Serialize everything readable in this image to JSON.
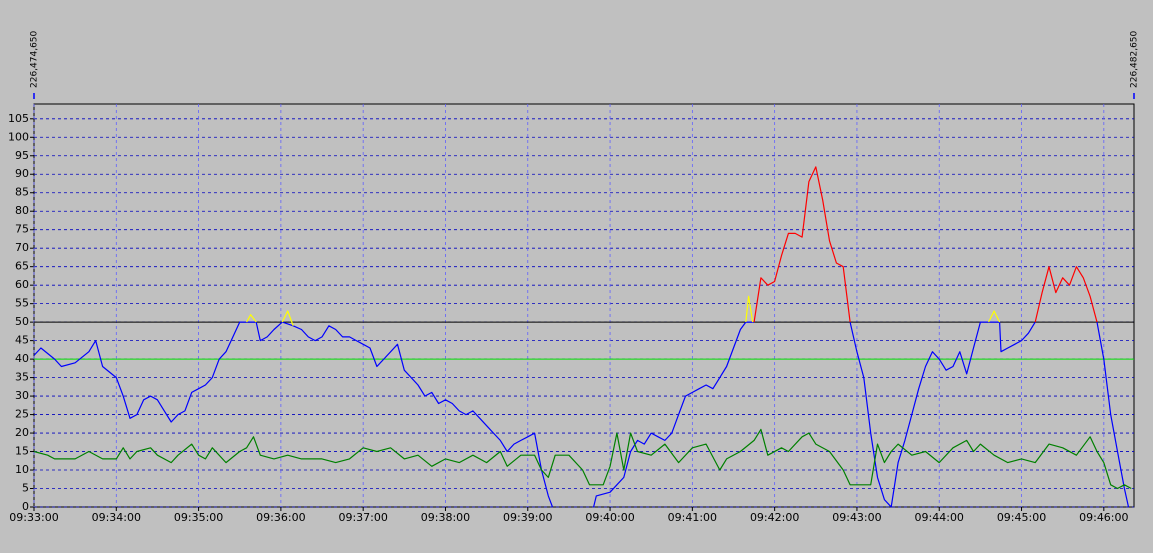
{
  "chart_data": {
    "type": "line",
    "top_labels": [
      "226,474,650",
      "226,482,650"
    ],
    "xlim": [
      "09:33:00",
      "09:46:22"
    ],
    "xticks": [
      "09:33:00",
      "09:34:00",
      "09:35:00",
      "09:36:00",
      "09:37:00",
      "09:38:00",
      "09:39:00",
      "09:40:00",
      "09:41:00",
      "09:42:00",
      "09:43:00",
      "09:44:00",
      "09:45:00",
      "09:46:00"
    ],
    "ylim": [
      0,
      109
    ],
    "yticks": [
      0,
      5,
      10,
      15,
      20,
      25,
      30,
      35,
      40,
      45,
      50,
      55,
      60,
      65,
      70,
      75,
      80,
      85,
      90,
      95,
      100,
      105
    ],
    "grid": true,
    "reference_lines": [
      {
        "value": 50,
        "color": "#000000"
      },
      {
        "value": 40,
        "color": "#00e000"
      }
    ],
    "series": [
      {
        "color": "#0000ff",
        "x": [
          "09:33:00",
          "09:33:05",
          "09:33:15",
          "09:33:20",
          "09:33:30",
          "09:33:40",
          "09:33:45",
          "09:33:50",
          "09:34:00",
          "09:34:05",
          "09:34:10",
          "09:34:15",
          "09:34:20",
          "09:34:25",
          "09:34:30",
          "09:34:35",
          "09:34:40",
          "09:34:45",
          "09:34:50",
          "09:34:55",
          "09:35:00",
          "09:35:05",
          "09:35:10",
          "09:35:15",
          "09:35:20",
          "09:35:25",
          "09:35:30",
          "09:35:35",
          "09:35:42",
          "09:35:45",
          "09:35:50",
          "09:35:55",
          "09:36:01",
          "09:36:09",
          "09:36:15",
          "09:36:20",
          "09:36:25",
          "09:36:30",
          "09:36:35",
          "09:36:40",
          "09:36:45",
          "09:36:50",
          "09:36:55",
          "09:37:00",
          "09:37:05",
          "09:37:10",
          "09:37:15",
          "09:37:25",
          "09:37:30",
          "09:37:35",
          "09:37:40",
          "09:37:45",
          "09:37:50",
          "09:37:55",
          "09:38:00",
          "09:38:05",
          "09:38:10",
          "09:38:15",
          "09:38:20",
          "09:38:25",
          "09:38:30",
          "09:38:35",
          "09:38:40",
          "09:38:45",
          "09:38:50",
          "09:38:55",
          "09:39:00",
          "09:39:05",
          "09:39:10",
          "09:39:15",
          "09:39:18",
          "09:39:30",
          "09:39:48",
          "09:39:50",
          "09:40:00",
          "09:40:05",
          "09:40:10",
          "09:40:15",
          "09:40:20",
          "09:40:25",
          "09:40:30",
          "09:40:35",
          "09:40:40",
          "09:40:45",
          "09:40:50",
          "09:40:55",
          "09:41:00",
          "09:41:05",
          "09:41:10",
          "09:41:15",
          "09:41:20",
          "09:41:25",
          "09:41:30",
          "09:41:35",
          "09:41:39",
          "09:41:44",
          "09:41:45",
          "09:42:00",
          "09:42:55",
          "09:43:00",
          "09:43:05",
          "09:43:10",
          "09:43:15",
          "09:43:20",
          "09:43:25",
          "09:43:30",
          "09:43:35",
          "09:43:40",
          "09:43:45",
          "09:43:50",
          "09:43:55",
          "09:44:00",
          "09:44:05",
          "09:44:10",
          "09:44:15",
          "09:44:20",
          "09:44:25",
          "09:44:30",
          "09:44:36",
          "09:44:44",
          "09:44:45",
          "09:44:50",
          "09:44:55",
          "09:45:00",
          "09:45:05",
          "09:45:10",
          "09:45:30",
          "09:45:55",
          "09:46:00",
          "09:46:05",
          "09:46:10",
          "09:46:15",
          "09:46:18"
        ],
        "values": [
          41,
          43,
          40,
          38,
          39,
          42,
          45,
          38,
          35,
          30,
          24,
          25,
          29,
          30,
          29,
          26,
          23,
          25,
          26,
          31,
          32,
          33,
          35,
          40,
          42,
          46,
          50,
          50,
          50,
          45,
          46,
          48,
          50,
          49,
          48,
          46,
          45,
          46,
          49,
          48,
          46,
          46,
          45,
          44,
          43,
          38,
          40,
          44,
          37,
          35,
          33,
          30,
          31,
          28,
          29,
          28,
          26,
          25,
          26,
          24,
          22,
          20,
          18,
          15,
          17,
          18,
          19,
          20,
          10,
          3,
          0,
          null,
          0,
          3,
          4,
          6,
          8,
          15,
          18,
          17,
          20,
          19,
          18,
          20,
          25,
          30,
          31,
          32,
          33,
          32,
          35,
          38,
          43,
          48,
          50,
          50,
          50,
          null,
          50,
          42,
          35,
          20,
          8,
          2,
          0,
          12,
          18,
          25,
          32,
          38,
          42,
          40,
          37,
          38,
          42,
          36,
          43,
          50,
          50,
          50,
          42,
          43,
          44,
          45,
          47,
          50,
          null,
          50,
          40,
          25,
          15,
          5,
          0
        ]
      },
      {
        "color": "#ff0000",
        "x": [
          "09:41:45",
          "09:41:50",
          "09:41:55",
          "09:42:00",
          "09:42:05",
          "09:42:10",
          "09:42:15",
          "09:42:20",
          "09:42:25",
          "09:42:30",
          "09:42:35",
          "09:42:40",
          "09:42:45",
          "09:42:50",
          "09:42:55",
          "09:44:00",
          "09:45:10",
          "09:45:15",
          "09:45:20",
          "09:45:25",
          "09:45:30",
          "09:45:35",
          "09:45:40",
          "09:45:45",
          "09:45:50",
          "09:45:55"
        ],
        "values": [
          50,
          62,
          60,
          61,
          68,
          74,
          74,
          73,
          88,
          92,
          83,
          72,
          66,
          65,
          50,
          null,
          50,
          58,
          65,
          58,
          62,
          60,
          65,
          62,
          57,
          50
        ]
      },
      {
        "color": "#ffff00",
        "x": [
          "09:35:35",
          "09:35:38",
          "09:35:42",
          "09:35:50",
          "09:36:01",
          "09:36:05",
          "09:36:09",
          "09:40:00",
          "09:41:39",
          "09:41:41",
          "09:41:44",
          "09:43:00",
          "09:44:36",
          "09:44:40",
          "09:44:44"
        ],
        "values": [
          50,
          52,
          50,
          null,
          50,
          53,
          49,
          null,
          50,
          57,
          50,
          null,
          50,
          53,
          50
        ]
      },
      {
        "color": "#008000",
        "x": [
          "09:33:00",
          "09:33:10",
          "09:33:15",
          "09:33:30",
          "09:33:40",
          "09:33:50",
          "09:34:00",
          "09:34:05",
          "09:34:10",
          "09:34:15",
          "09:34:25",
          "09:34:30",
          "09:34:40",
          "09:34:45",
          "09:34:55",
          "09:35:00",
          "09:35:05",
          "09:35:10",
          "09:35:20",
          "09:35:30",
          "09:35:35",
          "09:35:40",
          "09:35:45",
          "09:35:55",
          "09:36:05",
          "09:36:15",
          "09:36:30",
          "09:36:40",
          "09:36:50",
          "09:37:00",
          "09:37:10",
          "09:37:20",
          "09:37:30",
          "09:37:40",
          "09:37:50",
          "09:38:00",
          "09:38:10",
          "09:38:20",
          "09:38:30",
          "09:38:40",
          "09:38:45",
          "09:38:55",
          "09:39:05",
          "09:39:10",
          "09:39:15",
          "09:39:20",
          "09:39:30",
          "09:39:40",
          "09:39:45",
          "09:39:55",
          "09:40:00",
          "09:40:05",
          "09:40:10",
          "09:40:15",
          "09:40:20",
          "09:40:30",
          "09:40:40",
          "09:40:50",
          "09:41:00",
          "09:41:10",
          "09:41:20",
          "09:41:25",
          "09:41:35",
          "09:41:45",
          "09:41:50",
          "09:41:55",
          "09:42:05",
          "09:42:10",
          "09:42:20",
          "09:42:25",
          "09:42:30",
          "09:42:40",
          "09:42:50",
          "09:42:55",
          "09:43:10",
          "09:43:15",
          "09:43:20",
          "09:43:25",
          "09:43:30",
          "09:43:40",
          "09:43:50",
          "09:44:00",
          "09:44:10",
          "09:44:20",
          "09:44:25",
          "09:44:30",
          "09:44:40",
          "09:44:50",
          "09:45:00",
          "09:45:10",
          "09:45:20",
          "09:45:30",
          "09:45:40",
          "09:45:50",
          "09:45:55",
          "09:46:00",
          "09:46:05",
          "09:46:10",
          "09:46:15",
          "09:46:20"
        ],
        "values": [
          15,
          14,
          13,
          13,
          15,
          13,
          13,
          16,
          13,
          15,
          16,
          14,
          12,
          14,
          17,
          14,
          13,
          16,
          12,
          15,
          16,
          19,
          14,
          13,
          14,
          13,
          13,
          12,
          13,
          16,
          15,
          16,
          13,
          14,
          11,
          13,
          12,
          14,
          12,
          15,
          11,
          14,
          14,
          10,
          8,
          14,
          14,
          10,
          6,
          6,
          11,
          20,
          10,
          20,
          15,
          14,
          17,
          12,
          16,
          17,
          10,
          13,
          15,
          18,
          21,
          14,
          16,
          15,
          19,
          20,
          17,
          15,
          10,
          6,
          6,
          17,
          12,
          15,
          17,
          14,
          15,
          12,
          16,
          18,
          15,
          17,
          14,
          12,
          13,
          12,
          17,
          16,
          14,
          19,
          15,
          12,
          6,
          5,
          6,
          5
        ]
      }
    ]
  }
}
